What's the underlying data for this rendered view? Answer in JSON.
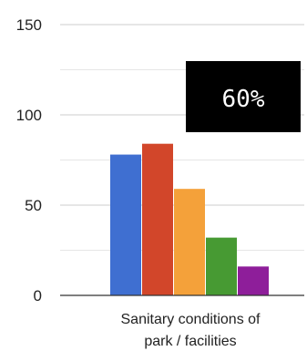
{
  "chart_data": {
    "type": "bar",
    "categories": [
      "Sanitary conditions of park / facilities"
    ],
    "category_lines": [
      "Sanitary conditions of",
      "park / facilities"
    ],
    "series": [
      {
        "values": [
          78
        ],
        "color": "#3f6fd1"
      },
      {
        "values": [
          84
        ],
        "color": "#d2462a"
      },
      {
        "values": [
          59
        ],
        "color": "#f4a13a"
      },
      {
        "values": [
          32
        ],
        "color": "#479a33"
      },
      {
        "values": [
          16
        ],
        "color": "#8e1e9a"
      }
    ],
    "ylim": [
      0,
      150
    ],
    "yticks": [
      0,
      50,
      100,
      150
    ],
    "grid": true,
    "legend": "none",
    "title": "",
    "xlabel": "",
    "ylabel": ""
  },
  "overlay": {
    "badge_text": "60%",
    "badge_bg": "#000000",
    "badge_fg": "#ffffff"
  }
}
